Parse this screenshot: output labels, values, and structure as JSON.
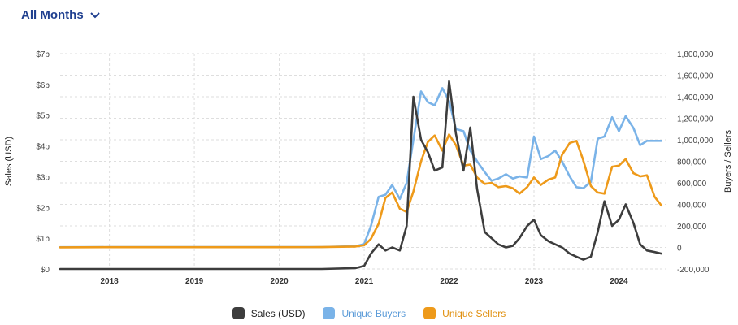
{
  "header": {
    "period_label": "All Months"
  },
  "chart_data": {
    "type": "line",
    "title": "",
    "xlabel": "",
    "ylabel": "Sales (USD)",
    "y2label": "Buyers / Sellers",
    "x_ticks": [
      "2018",
      "2019",
      "2020",
      "2021",
      "2022",
      "2023",
      "2024"
    ],
    "x_range": [
      2017.42,
      2024.56
    ],
    "y_range": [
      0,
      7000000000
    ],
    "y_ticks": [
      {
        "value": 0,
        "label": "$0"
      },
      {
        "value": 1000000000,
        "label": "$1b"
      },
      {
        "value": 2000000000,
        "label": "$2b"
      },
      {
        "value": 3000000000,
        "label": "$3b"
      },
      {
        "value": 4000000000,
        "label": "$4b"
      },
      {
        "value": 5000000000,
        "label": "$5b"
      },
      {
        "value": 6000000000,
        "label": "$6b"
      },
      {
        "value": 7000000000,
        "label": "$7b"
      }
    ],
    "y2_range": [
      -200000,
      1800000
    ],
    "y2_ticks": [
      {
        "value": 1800000,
        "label": "1,800,000"
      },
      {
        "value": 1600000,
        "label": "1,600,000"
      },
      {
        "value": 1400000,
        "label": "1,400,000"
      },
      {
        "value": 1200000,
        "label": "1,200,000"
      },
      {
        "value": 1000000,
        "label": "1,000,000"
      },
      {
        "value": 800000,
        "label": "800,000"
      },
      {
        "value": 600000,
        "label": "600,000"
      },
      {
        "value": 400000,
        "label": "400,000"
      },
      {
        "value": 200000,
        "label": "200,000"
      },
      {
        "value": 0,
        "label": "0"
      },
      {
        "value": -200000,
        "label": "-200,000"
      }
    ],
    "grid": true,
    "legend_position": "bottom",
    "series": [
      {
        "name": "Sales (USD)",
        "axis": "left",
        "color": "#3d3d3d",
        "x": [
          2017.42,
          2018.0,
          2018.5,
          2019.0,
          2019.5,
          2020.0,
          2020.5,
          2020.9,
          2021.0,
          2021.08,
          2021.17,
          2021.25,
          2021.33,
          2021.42,
          2021.5,
          2021.58,
          2021.67,
          2021.75,
          2021.83,
          2021.92,
          2022.0,
          2022.08,
          2022.17,
          2022.25,
          2022.33,
          2022.42,
          2022.5,
          2022.58,
          2022.67,
          2022.75,
          2022.83,
          2022.92,
          2023.0,
          2023.08,
          2023.17,
          2023.25,
          2023.33,
          2023.42,
          2023.5,
          2023.58,
          2023.67,
          2023.75,
          2023.83,
          2023.92,
          2024.0,
          2024.08,
          2024.17,
          2024.25,
          2024.33,
          2024.42,
          2024.5
        ],
        "values": [
          0,
          0,
          0,
          0,
          0,
          0,
          0,
          30000000,
          100000000,
          500000000,
          800000000,
          600000000,
          700000000,
          600000000,
          1400000000,
          5600000000,
          4200000000,
          3800000000,
          3200000000,
          3300000000,
          6100000000,
          4400000000,
          3200000000,
          4600000000,
          2600000000,
          1200000000,
          1000000000,
          800000000,
          700000000,
          750000000,
          1000000000,
          1400000000,
          1600000000,
          1100000000,
          900000000,
          800000000,
          700000000,
          500000000,
          400000000,
          300000000,
          400000000,
          1200000000,
          2200000000,
          1400000000,
          1600000000,
          2100000000,
          1500000000,
          800000000,
          600000000,
          550000000,
          500000000
        ]
      },
      {
        "name": "Unique Buyers",
        "axis": "right",
        "color": "#7ab3e8",
        "x": [
          2017.42,
          2018.0,
          2018.5,
          2019.0,
          2019.5,
          2020.0,
          2020.5,
          2020.9,
          2021.0,
          2021.08,
          2021.17,
          2021.25,
          2021.33,
          2021.42,
          2021.5,
          2021.58,
          2021.67,
          2021.75,
          2021.83,
          2021.92,
          2022.0,
          2022.08,
          2022.17,
          2022.25,
          2022.33,
          2022.42,
          2022.5,
          2022.58,
          2022.67,
          2022.75,
          2022.83,
          2022.92,
          2023.0,
          2023.08,
          2023.17,
          2023.25,
          2023.33,
          2023.42,
          2023.5,
          2023.58,
          2023.67,
          2023.75,
          2023.83,
          2023.92,
          2024.0,
          2024.08,
          2024.17,
          2024.25,
          2024.33,
          2024.42,
          2024.5
        ],
        "values": [
          2000,
          3000,
          3000,
          3000,
          3000,
          3000,
          4000,
          12000,
          30000,
          200000,
          470000,
          490000,
          580000,
          450000,
          600000,
          1000000,
          1450000,
          1350000,
          1320000,
          1480000,
          1360000,
          1100000,
          1080000,
          900000,
          800000,
          700000,
          620000,
          640000,
          680000,
          640000,
          660000,
          650000,
          1030000,
          820000,
          850000,
          900000,
          800000,
          660000,
          560000,
          550000,
          610000,
          1010000,
          1030000,
          1210000,
          1080000,
          1220000,
          1110000,
          950000,
          990000,
          990000,
          990000
        ]
      },
      {
        "name": "Unique Sellers",
        "axis": "right",
        "color": "#ee9a1a",
        "x": [
          2017.42,
          2018.0,
          2018.5,
          2019.0,
          2019.5,
          2020.0,
          2020.5,
          2020.9,
          2021.0,
          2021.08,
          2021.17,
          2021.25,
          2021.33,
          2021.42,
          2021.5,
          2021.58,
          2021.67,
          2021.75,
          2021.83,
          2021.92,
          2022.0,
          2022.08,
          2022.17,
          2022.25,
          2022.33,
          2022.42,
          2022.5,
          2022.58,
          2022.67,
          2022.75,
          2022.83,
          2022.92,
          2023.0,
          2023.08,
          2023.17,
          2023.25,
          2023.33,
          2023.42,
          2023.5,
          2023.58,
          2023.67,
          2023.75,
          2023.83,
          2023.92,
          2024.0,
          2024.08,
          2024.17,
          2024.25,
          2024.33,
          2024.42,
          2024.5
        ],
        "values": [
          1000,
          2000,
          2000,
          2000,
          2000,
          2000,
          3000,
          8000,
          20000,
          80000,
          220000,
          460000,
          510000,
          360000,
          330000,
          520000,
          800000,
          980000,
          1040000,
          900000,
          1050000,
          950000,
          760000,
          770000,
          650000,
          590000,
          600000,
          560000,
          570000,
          550000,
          500000,
          560000,
          650000,
          580000,
          630000,
          650000,
          860000,
          970000,
          990000,
          810000,
          570000,
          510000,
          500000,
          750000,
          760000,
          820000,
          690000,
          660000,
          670000,
          470000,
          390000
        ]
      }
    ]
  },
  "legend": {
    "items": [
      {
        "label": "Sales (USD)",
        "color": "#3d3d3d"
      },
      {
        "label": "Unique Buyers",
        "color": "#7ab3e8"
      },
      {
        "label": "Unique Sellers",
        "color": "#ee9a1a"
      }
    ]
  }
}
